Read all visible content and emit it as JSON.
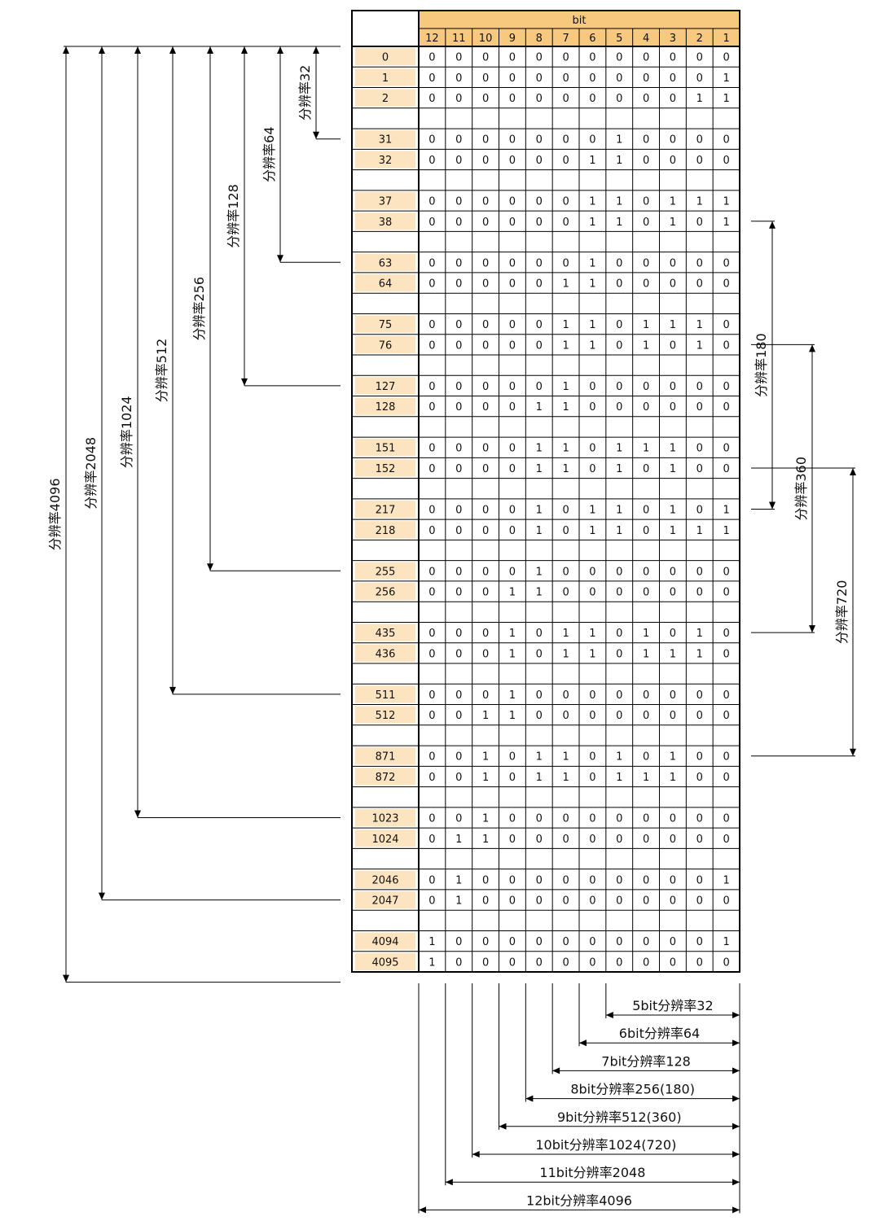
{
  "colors": {
    "header_fill": "#F7C97E",
    "label_fill": "#FCE4C0",
    "grid": "#000000",
    "line": "#000000"
  },
  "table": {
    "header": "bit",
    "bit_columns": [
      "12",
      "11",
      "10",
      "9",
      "8",
      "7",
      "6",
      "5",
      "4",
      "3",
      "2",
      "1"
    ],
    "rows": [
      {
        "label": "0",
        "bits": [
          "0",
          "0",
          "0",
          "0",
          "0",
          "0",
          "0",
          "0",
          "0",
          "0",
          "0",
          "0"
        ]
      },
      {
        "label": "1",
        "bits": [
          "0",
          "0",
          "0",
          "0",
          "0",
          "0",
          "0",
          "0",
          "0",
          "0",
          "0",
          "1"
        ]
      },
      {
        "label": "2",
        "bits": [
          "0",
          "0",
          "0",
          "0",
          "0",
          "0",
          "0",
          "0",
          "0",
          "0",
          "1",
          "1"
        ]
      },
      {
        "label": "",
        "bits": []
      },
      {
        "label": "31",
        "bits": [
          "0",
          "0",
          "0",
          "0",
          "0",
          "0",
          "0",
          "1",
          "0",
          "0",
          "0",
          "0"
        ]
      },
      {
        "label": "32",
        "bits": [
          "0",
          "0",
          "0",
          "0",
          "0",
          "0",
          "1",
          "1",
          "0",
          "0",
          "0",
          "0"
        ]
      },
      {
        "label": "",
        "bits": []
      },
      {
        "label": "37",
        "bits": [
          "0",
          "0",
          "0",
          "0",
          "0",
          "0",
          "1",
          "1",
          "0",
          "1",
          "1",
          "1"
        ]
      },
      {
        "label": "38",
        "bits": [
          "0",
          "0",
          "0",
          "0",
          "0",
          "0",
          "1",
          "1",
          "0",
          "1",
          "0",
          "1"
        ]
      },
      {
        "label": "",
        "bits": []
      },
      {
        "label": "63",
        "bits": [
          "0",
          "0",
          "0",
          "0",
          "0",
          "0",
          "1",
          "0",
          "0",
          "0",
          "0",
          "0"
        ]
      },
      {
        "label": "64",
        "bits": [
          "0",
          "0",
          "0",
          "0",
          "0",
          "1",
          "1",
          "0",
          "0",
          "0",
          "0",
          "0"
        ]
      },
      {
        "label": "",
        "bits": []
      },
      {
        "label": "75",
        "bits": [
          "0",
          "0",
          "0",
          "0",
          "0",
          "1",
          "1",
          "0",
          "1",
          "1",
          "1",
          "0"
        ]
      },
      {
        "label": "76",
        "bits": [
          "0",
          "0",
          "0",
          "0",
          "0",
          "1",
          "1",
          "0",
          "1",
          "0",
          "1",
          "0"
        ]
      },
      {
        "label": "",
        "bits": []
      },
      {
        "label": "127",
        "bits": [
          "0",
          "0",
          "0",
          "0",
          "0",
          "1",
          "0",
          "0",
          "0",
          "0",
          "0",
          "0"
        ]
      },
      {
        "label": "128",
        "bits": [
          "0",
          "0",
          "0",
          "0",
          "1",
          "1",
          "0",
          "0",
          "0",
          "0",
          "0",
          "0"
        ]
      },
      {
        "label": "",
        "bits": []
      },
      {
        "label": "151",
        "bits": [
          "0",
          "0",
          "0",
          "0",
          "1",
          "1",
          "0",
          "1",
          "1",
          "1",
          "0",
          "0"
        ]
      },
      {
        "label": "152",
        "bits": [
          "0",
          "0",
          "0",
          "0",
          "1",
          "1",
          "0",
          "1",
          "0",
          "1",
          "0",
          "0"
        ]
      },
      {
        "label": "",
        "bits": []
      },
      {
        "label": "217",
        "bits": [
          "0",
          "0",
          "0",
          "0",
          "1",
          "0",
          "1",
          "1",
          "0",
          "1",
          "0",
          "1"
        ]
      },
      {
        "label": "218",
        "bits": [
          "0",
          "0",
          "0",
          "0",
          "1",
          "0",
          "1",
          "1",
          "0",
          "1",
          "1",
          "1"
        ]
      },
      {
        "label": "",
        "bits": []
      },
      {
        "label": "255",
        "bits": [
          "0",
          "0",
          "0",
          "0",
          "1",
          "0",
          "0",
          "0",
          "0",
          "0",
          "0",
          "0"
        ]
      },
      {
        "label": "256",
        "bits": [
          "0",
          "0",
          "0",
          "1",
          "1",
          "0",
          "0",
          "0",
          "0",
          "0",
          "0",
          "0"
        ]
      },
      {
        "label": "",
        "bits": []
      },
      {
        "label": "435",
        "bits": [
          "0",
          "0",
          "0",
          "1",
          "0",
          "1",
          "1",
          "0",
          "1",
          "0",
          "1",
          "0"
        ]
      },
      {
        "label": "436",
        "bits": [
          "0",
          "0",
          "0",
          "1",
          "0",
          "1",
          "1",
          "0",
          "1",
          "1",
          "1",
          "0"
        ]
      },
      {
        "label": "",
        "bits": []
      },
      {
        "label": "511",
        "bits": [
          "0",
          "0",
          "0",
          "1",
          "0",
          "0",
          "0",
          "0",
          "0",
          "0",
          "0",
          "0"
        ]
      },
      {
        "label": "512",
        "bits": [
          "0",
          "0",
          "1",
          "1",
          "0",
          "0",
          "0",
          "0",
          "0",
          "0",
          "0",
          "0"
        ]
      },
      {
        "label": "",
        "bits": []
      },
      {
        "label": "871",
        "bits": [
          "0",
          "0",
          "1",
          "0",
          "1",
          "1",
          "0",
          "1",
          "0",
          "1",
          "0",
          "0"
        ]
      },
      {
        "label": "872",
        "bits": [
          "0",
          "0",
          "1",
          "0",
          "1",
          "1",
          "0",
          "1",
          "1",
          "1",
          "0",
          "0"
        ]
      },
      {
        "label": "",
        "bits": []
      },
      {
        "label": "1023",
        "bits": [
          "0",
          "0",
          "1",
          "0",
          "0",
          "0",
          "0",
          "0",
          "0",
          "0",
          "0",
          "0"
        ]
      },
      {
        "label": "1024",
        "bits": [
          "0",
          "1",
          "1",
          "0",
          "0",
          "0",
          "0",
          "0",
          "0",
          "0",
          "0",
          "0"
        ]
      },
      {
        "label": "",
        "bits": []
      },
      {
        "label": "2046",
        "bits": [
          "0",
          "1",
          "0",
          "0",
          "0",
          "0",
          "0",
          "0",
          "0",
          "0",
          "0",
          "1"
        ]
      },
      {
        "label": "2047",
        "bits": [
          "0",
          "1",
          "0",
          "0",
          "0",
          "0",
          "0",
          "0",
          "0",
          "0",
          "0",
          "0"
        ]
      },
      {
        "label": "",
        "bits": []
      },
      {
        "label": "4094",
        "bits": [
          "1",
          "0",
          "0",
          "0",
          "0",
          "0",
          "0",
          "0",
          "0",
          "0",
          "0",
          "1"
        ]
      },
      {
        "label": "4095",
        "bits": [
          "1",
          "0",
          "0",
          "0",
          "0",
          "0",
          "0",
          "0",
          "0",
          "0",
          "0",
          "0"
        ]
      }
    ]
  },
  "left_brackets": [
    {
      "label": "分辨率32",
      "end_row": 4
    },
    {
      "label": "分辨率64",
      "end_row": 10
    },
    {
      "label": "分辨率128",
      "end_row": 16
    },
    {
      "label": "分辨率256",
      "end_row": 25
    },
    {
      "label": "分辨率512",
      "end_row": 31
    },
    {
      "label": "分辨率1024",
      "end_row": 37
    },
    {
      "label": "分辨率2048",
      "end_row": 41
    },
    {
      "label": "分辨率4096",
      "end_row": 45
    }
  ],
  "right_brackets": [
    {
      "label": "分辨率180",
      "start_row": 8,
      "end_row": 22
    },
    {
      "label": "分辨率360",
      "start_row": 14,
      "end_row": 28
    },
    {
      "label": "分辨率720",
      "start_row": 20,
      "end_row": 34
    }
  ],
  "bottom_labels": [
    {
      "label": "5bit分辨率32",
      "bit": 5
    },
    {
      "label": "6bit分辨率64",
      "bit": 6
    },
    {
      "label": "7bit分辨率128",
      "bit": 7
    },
    {
      "label": "8bit分辨率256(180)",
      "bit": 8
    },
    {
      "label": "9bit分辨率512(360)",
      "bit": 9
    },
    {
      "label": "10bit分辨率1024(720)",
      "bit": 10
    },
    {
      "label": "11bit分辨率2048",
      "bit": 11
    },
    {
      "label": "12bit分辨率4096",
      "bit": 12
    }
  ]
}
